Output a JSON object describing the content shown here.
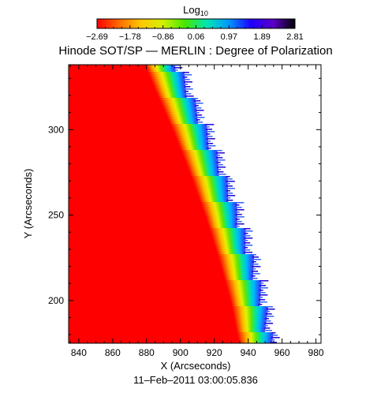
{
  "chart_data": {
    "type": "heatmap",
    "title": "Hinode SOT/SP — MERLIN : Degree of Polarization",
    "xlabel": "X (Arcseconds)",
    "ylabel": "Y (Arcseconds)",
    "footer": "11–Feb–2011 03:00:05.836",
    "xlim": [
      834,
      983
    ],
    "ylim": [
      175,
      338
    ],
    "x_ticks": [
      840,
      860,
      880,
      900,
      920,
      940,
      960,
      980
    ],
    "y_ticks": [
      200,
      250,
      300
    ],
    "colorbar": {
      "label_main": "Log",
      "label_sub": "10",
      "tick_values": [
        "−2.69",
        "−1.78",
        "−0.86",
        "0.06",
        "0.97",
        "1.89",
        "2.81"
      ],
      "range": [
        -2.69,
        2.81
      ],
      "colormap": [
        "#ff0000",
        "#ff6a00",
        "#ffc800",
        "#d2f000",
        "#46e600",
        "#00e6b4",
        "#0096ff",
        "#1e00ff",
        "#5a00c8",
        "#000000"
      ]
    },
    "limb_boundary": {
      "description_units": "arcsec",
      "points_y": [
        175,
        200,
        225,
        250,
        275,
        300,
        325,
        338
      ],
      "points_x": [
        937.5,
        932.5,
        925.5,
        917.5,
        908.5,
        898.5,
        887.5,
        882
      ]
    },
    "background_color": "#ff0000"
  }
}
